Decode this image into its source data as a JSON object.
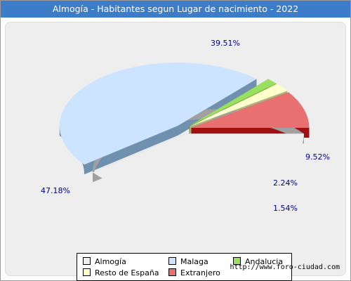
{
  "title": "Almogía - Habitantes segun Lugar de nacimiento - 2022",
  "footer_url": "http://www.foro-ciudad.com",
  "colors": {
    "title_bar": "#3D7CC9",
    "chart_background": "#EEEEEE",
    "label_text": "#00008B"
  },
  "chart_data": {
    "type": "pie",
    "style": "3d-exploded",
    "unit": "%",
    "legend_position": "bottom",
    "slices": [
      {
        "name": "Almogía",
        "value": 39.51,
        "label": "39.51%",
        "color": "#EEEEEE",
        "side_color": "#A0A0A0"
      },
      {
        "name": "Malaga",
        "value": 47.18,
        "label": "47.18%",
        "color": "#CCE4FF",
        "side_color": "#7090B0"
      },
      {
        "name": "Andalucia",
        "value": 1.54,
        "label": "1.54%",
        "color": "#99E060",
        "side_color": "#66A030"
      },
      {
        "name": "Resto de España",
        "value": 2.24,
        "label": "2.24%",
        "color": "#FFFFCC",
        "side_color": "#B0B080"
      },
      {
        "name": "Extranjero",
        "value": 9.52,
        "label": "9.52%",
        "color": "#E87070",
        "side_color": "#A01010"
      }
    ]
  }
}
